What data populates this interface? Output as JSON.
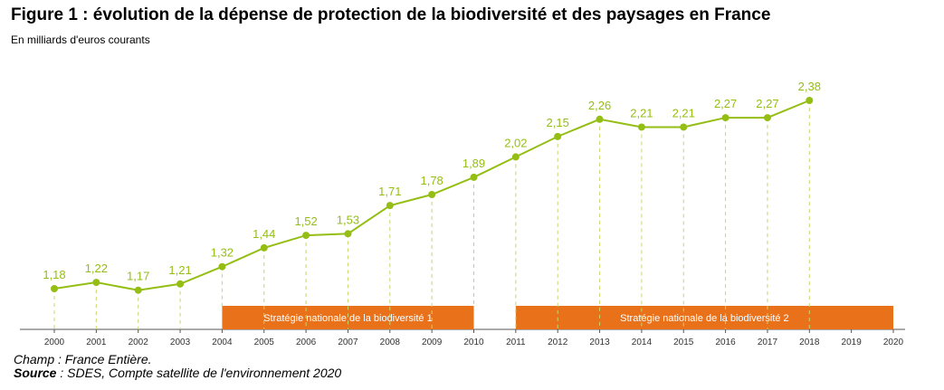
{
  "chart_data": {
    "type": "line",
    "title": "Figure 1 : évolution de la dépense de protection de la biodiversité et des paysages en France",
    "subtitle": "En milliards d'euros courants",
    "x": [
      "2000",
      "2001",
      "2002",
      "2003",
      "2004",
      "2005",
      "2006",
      "2007",
      "2008",
      "2009",
      "2010",
      "2011",
      "2012",
      "2013",
      "2014",
      "2015",
      "2016",
      "2017",
      "2018"
    ],
    "tick_labels": [
      "2000",
      "2001",
      "2002",
      "2003",
      "2004",
      "2005",
      "2006",
      "2007",
      "2008",
      "2009",
      "2010",
      "2011",
      "2012",
      "2013",
      "2014",
      "2015",
      "2016",
      "2017",
      "2018",
      "2019",
      "2020"
    ],
    "series": [
      {
        "values": [
          1.18,
          1.22,
          1.17,
          1.21,
          1.32,
          1.44,
          1.52,
          1.53,
          1.71,
          1.78,
          1.89,
          2.02,
          2.15,
          2.26,
          2.21,
          2.21,
          2.27,
          2.27,
          2.38
        ],
        "labels": [
          "1,18",
          "1,22",
          "1,17",
          "1,21",
          "1,32",
          "1,44",
          "1,52",
          "1,53",
          "1,71",
          "1,78",
          "1,89",
          "2,02",
          "2,15",
          "2,26",
          "2,21",
          "2,21",
          "2,27",
          "2,27",
          "2,38"
        ],
        "color": "#95be14"
      }
    ],
    "periods": [
      {
        "label": "Stratégie nationale de la biodiversité 1",
        "start": 2004,
        "end": 2010,
        "color": "#e8711a"
      },
      {
        "label": "Stratégie nationale de la biodiversité 2",
        "start": 2011,
        "end": 2020,
        "color": "#e8711a"
      }
    ],
    "xlim": [
      2000,
      2020
    ],
    "xlabel": "",
    "ylabel": "",
    "grid": false,
    "legend": "none"
  },
  "footnotes": {
    "champ": "Champ : France Entière.",
    "source_label": "Source",
    "source_text": " : SDES, Compte satellite de l'environnement 2020"
  }
}
